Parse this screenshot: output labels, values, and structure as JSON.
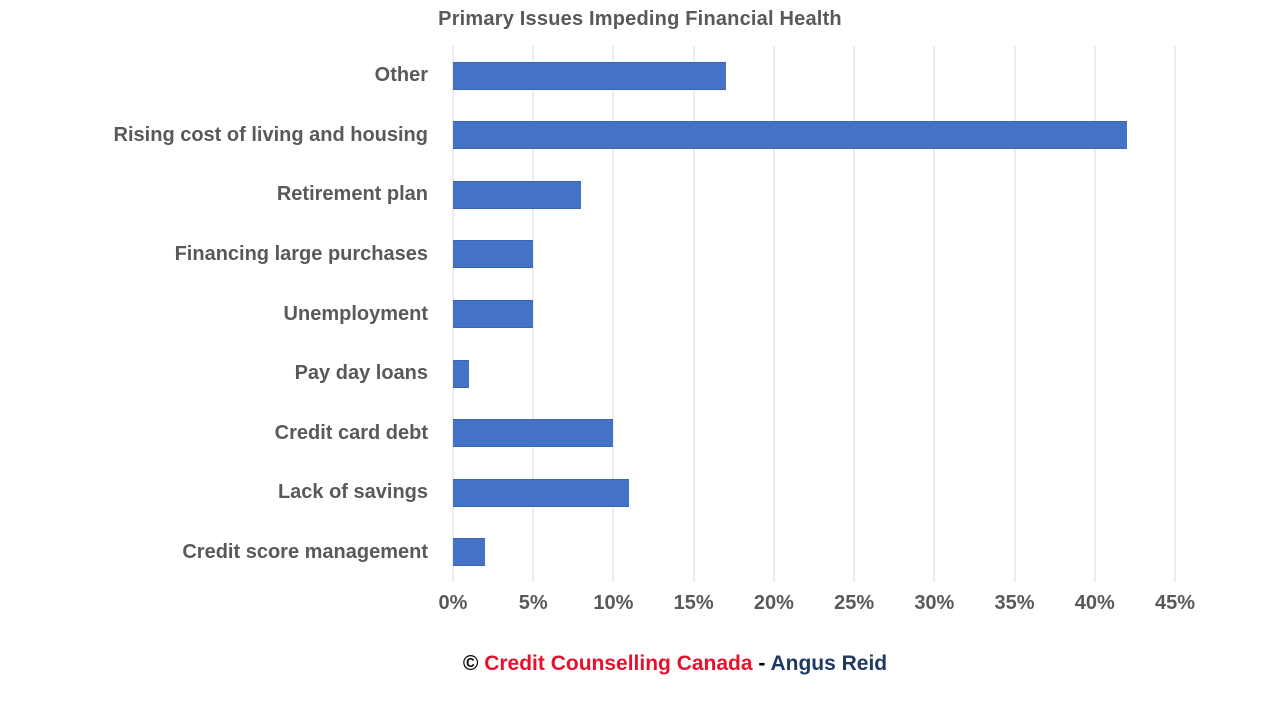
{
  "title": "Primary Issues Impeding Financial Health",
  "chart_data": {
    "type": "bar",
    "orientation": "horizontal",
    "title": "Primary Issues Impeding Financial Health",
    "categories": [
      "Other",
      "Rising cost of living and housing",
      "Retirement plan",
      "Financing large purchases",
      "Unemployment",
      "Pay day loans",
      "Credit card debt",
      "Lack of savings",
      "Credit score management"
    ],
    "values": [
      17,
      42,
      8,
      5,
      5,
      1,
      10,
      11,
      2
    ],
    "unit": "%",
    "xlabel": "",
    "ylabel": "",
    "xlim": [
      0,
      45
    ],
    "x_ticks": [
      "0%",
      "5%",
      "10%",
      "15%",
      "20%",
      "25%",
      "30%",
      "35%",
      "40%",
      "45%"
    ],
    "grid": true,
    "legend": false,
    "bar_color": "#4472C4"
  },
  "footer": {
    "copyright_symbol": "©",
    "source": "Credit Counselling Canada",
    "separator": "-",
    "attribution": "Angus Reid"
  },
  "colors": {
    "bar": "#4472C4",
    "text_gray": "#595959",
    "gridline": "#D9D9D9",
    "footer_red": "#E8112D",
    "footer_navy": "#1F3864",
    "footer_black": "#000000"
  }
}
